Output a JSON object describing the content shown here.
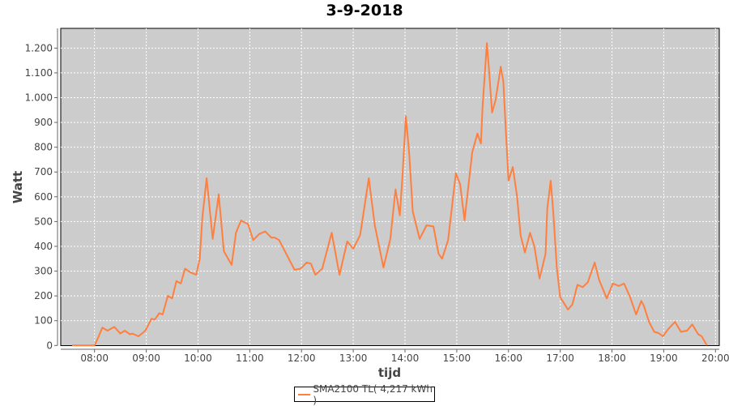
{
  "chart_data": {
    "type": "line",
    "title": "3-9-2018",
    "xlabel": "tijd",
    "ylabel": "Watt",
    "ylim": [
      0,
      1280
    ],
    "xlim": [
      "07:20",
      "20:05"
    ],
    "yticks": [
      0,
      100,
      200,
      300,
      400,
      500,
      600,
      700,
      800,
      900,
      1000,
      1100,
      1200
    ],
    "ytick_labels": [
      "0",
      "100",
      "200",
      "300",
      "400",
      "500",
      "600",
      "700",
      "800",
      "900",
      "1.000",
      "1.100",
      "1.200"
    ],
    "xticks": [
      "08:00",
      "09:00",
      "10:00",
      "11:00",
      "12:00",
      "13:00",
      "14:00",
      "15:00",
      "16:00",
      "17:00",
      "18:00",
      "19:00",
      "20:00"
    ],
    "grid": true,
    "legend_position": "bottom",
    "background": "#cccccc",
    "series": [
      {
        "name": "SMA2100 TL( 4,217 kWh )",
        "color": "#ff7f3f",
        "x": [
          "07:34",
          "08:00",
          "08:04",
          "08:09",
          "08:15",
          "08:23",
          "08:30",
          "08:35",
          "08:41",
          "08:44",
          "08:51",
          "08:59",
          "09:06",
          "09:10",
          "09:15",
          "09:19",
          "09:25",
          "09:30",
          "09:35",
          "09:40",
          "09:45",
          "09:51",
          "09:58",
          "10:02",
          "10:05",
          "10:10",
          "10:17",
          "10:24",
          "10:30",
          "10:39",
          "10:44",
          "10:50",
          "10:52",
          "10:58",
          "11:04",
          "11:11",
          "11:18",
          "11:25",
          "11:29",
          "11:34",
          "11:52",
          "11:59",
          "12:06",
          "12:11",
          "12:16",
          "12:24",
          "12:35",
          "12:44",
          "12:53",
          "13:00",
          "13:08",
          "13:18",
          "13:25",
          "13:35",
          "13:43",
          "13:49",
          "13:54",
          "13:57",
          "14:01",
          "14:05",
          "14:09",
          "14:17",
          "14:25",
          "14:33",
          "14:39",
          "14:43",
          "14:50",
          "14:59",
          "15:04",
          "15:09",
          "15:18",
          "15:24",
          "15:28",
          "15:30",
          "15:35",
          "15:37",
          "15:41",
          "15:45",
          "15:51",
          "15:54",
          "15:57",
          "16:00",
          "16:05",
          "16:10",
          "16:14",
          "16:19",
          "16:25",
          "16:30",
          "16:36",
          "16:43",
          "16:45",
          "16:49",
          "16:52",
          "16:56",
          "17:00",
          "17:09",
          "17:14",
          "17:20",
          "17:26",
          "17:32",
          "17:40",
          "17:45",
          "17:54",
          "18:01",
          "18:08",
          "18:14",
          "18:21",
          "18:28",
          "18:34",
          "18:37",
          "18:43",
          "18:49",
          "18:54",
          "18:59",
          "19:05",
          "19:13",
          "19:20",
          "19:27",
          "19:33",
          "19:40",
          "19:44",
          "19:50"
        ],
        "y": [
          0,
          0,
          30,
          72,
          60,
          75,
          48,
          60,
          45,
          48,
          37,
          60,
          108,
          105,
          130,
          125,
          200,
          190,
          260,
          250,
          310,
          295,
          285,
          350,
          515,
          675,
          430,
          610,
          380,
          325,
          455,
          505,
          500,
          490,
          425,
          450,
          460,
          435,
          435,
          425,
          305,
          310,
          335,
          330,
          285,
          310,
          455,
          285,
          420,
          390,
          445,
          675,
          485,
          315,
          430,
          630,
          525,
          680,
          925,
          770,
          540,
          430,
          485,
          480,
          370,
          350,
          425,
          695,
          650,
          505,
          780,
          855,
          815,
          965,
          1220,
          1130,
          940,
          990,
          1125,
          1065,
          860,
          665,
          720,
          600,
          445,
          375,
          455,
          400,
          270,
          370,
          555,
          665,
          535,
          315,
          195,
          145,
          165,
          245,
          235,
          255,
          335,
          265,
          190,
          250,
          240,
          250,
          195,
          125,
          180,
          160,
          95,
          55,
          50,
          37,
          65,
          95,
          55,
          60,
          85,
          45,
          37,
          0
        ]
      }
    ]
  }
}
